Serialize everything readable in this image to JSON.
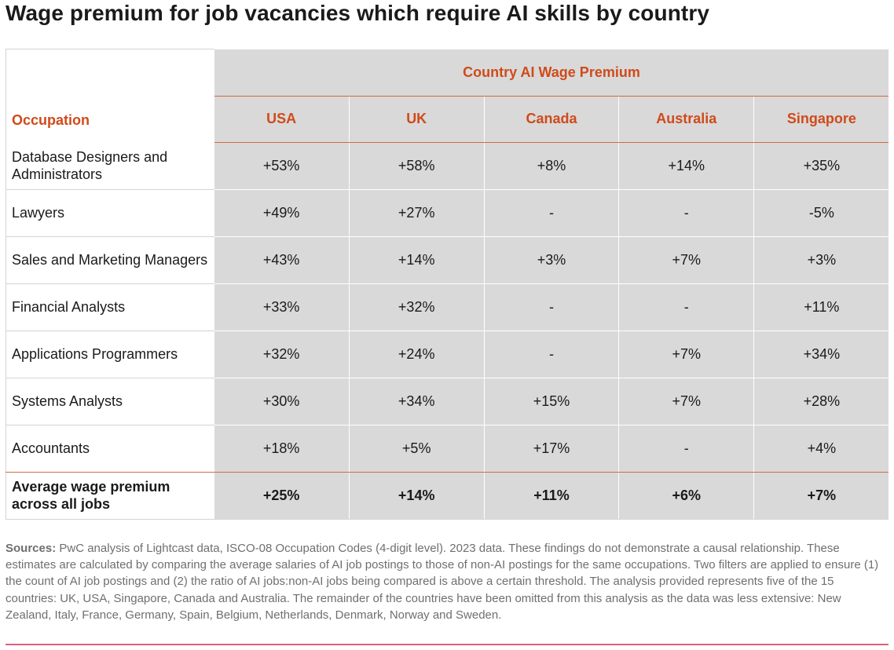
{
  "title": "Wage premium for job vacancies which require AI skills by country",
  "table": {
    "occupation_header": "Occupation",
    "group_header": "Country AI Wage Premium",
    "countries": [
      "USA",
      "UK",
      "Canada",
      "Australia",
      "Singapore"
    ],
    "rows": [
      {
        "occupation": "Database Designers and Administrators",
        "values": [
          "+53%",
          "+58%",
          "+8%",
          "+14%",
          "+35%"
        ]
      },
      {
        "occupation": "Lawyers",
        "values": [
          "+49%",
          "+27%",
          "-",
          "-",
          "-5%"
        ]
      },
      {
        "occupation": "Sales and Marketing Managers",
        "values": [
          "+43%",
          "+14%",
          "+3%",
          "+7%",
          "+3%"
        ]
      },
      {
        "occupation": "Financial Analysts",
        "values": [
          "+33%",
          "+32%",
          "-",
          "-",
          "+11%"
        ]
      },
      {
        "occupation": "Applications Programmers",
        "values": [
          "+32%",
          "+24%",
          "-",
          "+7%",
          "+34%"
        ]
      },
      {
        "occupation": "Systems Analysts",
        "values": [
          "+30%",
          "+34%",
          "+15%",
          "+7%",
          "+28%"
        ]
      },
      {
        "occupation": "Accountants",
        "values": [
          "+18%",
          "+5%",
          "+17%",
          "-",
          "+4%"
        ]
      }
    ],
    "average_row": {
      "occupation": "Average wage premium across all jobs",
      "values": [
        "+25%",
        "+14%",
        "+11%",
        "+6%",
        "+7%"
      ]
    }
  },
  "sources": {
    "label": "Sources:",
    "text": "PwC analysis of Lightcast data, ISCO-08 Occupation Codes (4-digit level). 2023 data. These findings do not demonstrate a causal relationship. These estimates are calculated by comparing the average salaries of AI job postings to those of non-AI postings for the same occupations. Two filters are applied to ensure (1) the count of AI job postings and (2) the ratio of AI jobs:non-AI jobs being compared is above a certain threshold. The analysis provided represents five of the 15 countries: UK, USA, Singapore, Canada and Australia. The remainder of the countries have been omitted from this analysis as the data was less extensive: New Zealand, Italy, France, Germany, Spain, Belgium, Netherlands, Denmark, Norway and Sweden."
  },
  "colors": {
    "accent": "#d04a1a",
    "cell_background": "#d9d9d9",
    "rule": "#e0607a"
  }
}
